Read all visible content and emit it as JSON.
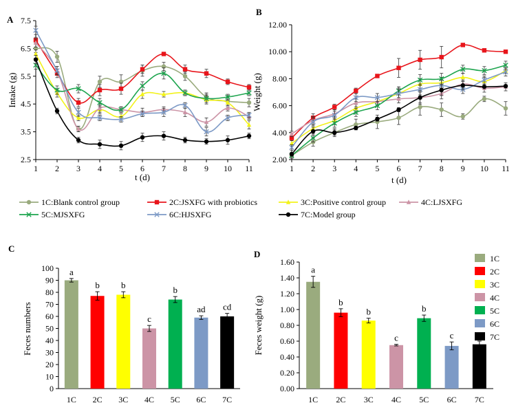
{
  "chart_data": [
    {
      "id": "A",
      "panel_label": "A",
      "type": "line",
      "xlabel": "t (d)",
      "ylabel": "Intake (g)",
      "x": [
        1,
        2,
        3,
        4,
        5,
        6,
        7,
        8,
        9,
        10,
        11
      ],
      "xticks": [
        "1",
        "2",
        "3",
        "4",
        "5",
        "6",
        "7",
        "8",
        "9",
        "10",
        "11"
      ],
      "ylim": [
        2.5,
        7.5
      ],
      "yticks": [
        "2.5",
        "3.5",
        "4.5",
        "5.5",
        "6.5",
        "7.5"
      ],
      "series": [
        {
          "key": "1C",
          "values": [
            6.5,
            6.2,
            3.6,
            5.3,
            5.3,
            5.7,
            5.85,
            5.5,
            4.75,
            4.6,
            4.55
          ],
          "err": [
            0.15,
            0.2,
            0.1,
            0.2,
            0.25,
            0.2,
            0.15,
            0.15,
            0.15,
            0.2,
            0.15
          ]
        },
        {
          "key": "2C",
          "values": [
            6.8,
            5.6,
            4.55,
            5.0,
            5.05,
            5.75,
            6.3,
            5.75,
            5.6,
            5.3,
            5.1
          ],
          "err": [
            0.1,
            0.15,
            0.15,
            0.2,
            0.2,
            0.15,
            0.05,
            0.15,
            0.15,
            0.1,
            0.1
          ]
        },
        {
          "key": "3C",
          "values": [
            6.3,
            4.9,
            4.0,
            4.3,
            4.05,
            4.85,
            4.85,
            4.9,
            4.65,
            4.55,
            3.75
          ],
          "err": [
            0.15,
            0.15,
            0.1,
            0.15,
            0.1,
            0.15,
            0.1,
            0.1,
            0.15,
            0.1,
            0.15
          ]
        },
        {
          "key": "4C",
          "values": [
            6.7,
            5.7,
            3.6,
            4.35,
            4.3,
            4.2,
            4.3,
            4.2,
            3.85,
            4.35,
            4.05
          ],
          "err": [
            0.15,
            0.15,
            0.1,
            0.15,
            0.1,
            0.15,
            0.1,
            0.15,
            0.15,
            0.1,
            0.1
          ]
        },
        {
          "key": "5C",
          "values": [
            5.9,
            5.0,
            5.05,
            4.55,
            4.3,
            5.15,
            5.6,
            4.9,
            4.7,
            4.75,
            4.9
          ],
          "err": [
            0.15,
            0.15,
            0.15,
            0.15,
            0.1,
            0.15,
            0.2,
            0.1,
            0.15,
            0.1,
            0.1
          ]
        },
        {
          "key": "6C",
          "values": [
            7.15,
            5.7,
            4.2,
            4.0,
            3.95,
            4.15,
            4.2,
            4.45,
            3.5,
            4.0,
            4.1
          ],
          "err": [
            0.15,
            0.15,
            0.15,
            0.1,
            0.1,
            0.1,
            0.15,
            0.1,
            0.15,
            0.1,
            0.1
          ]
        },
        {
          "key": "7C",
          "values": [
            6.1,
            4.25,
            3.2,
            3.05,
            3.0,
            3.3,
            3.35,
            3.2,
            3.15,
            3.2,
            3.35
          ],
          "err": [
            0.15,
            0.1,
            0.1,
            0.15,
            0.15,
            0.15,
            0.15,
            0.1,
            0.1,
            0.15,
            0.1
          ]
        }
      ]
    },
    {
      "id": "B",
      "panel_label": "B",
      "type": "line",
      "xlabel": "t (d)",
      "ylabel": "Weight (g)",
      "x": [
        1,
        2,
        3,
        4,
        5,
        6,
        7,
        8,
        9,
        10,
        11
      ],
      "xticks": [
        "1",
        "2",
        "3",
        "4",
        "5",
        "6",
        "7",
        "8",
        "9",
        "10",
        "11"
      ],
      "ylim": [
        2,
        12
      ],
      "yticks": [
        "2.00",
        "4.00",
        "6.00",
        "8.00",
        "10.00",
        "12.00"
      ],
      "series": [
        {
          "key": "1C",
          "values": [
            2.3,
            3.3,
            4.0,
            4.6,
            4.8,
            5.1,
            5.9,
            5.7,
            5.2,
            6.5,
            5.8
          ],
          "err": [
            0.2,
            0.3,
            0.3,
            0.4,
            0.5,
            0.5,
            0.6,
            0.5,
            0.2,
            0.2,
            0.5
          ]
        },
        {
          "key": "2C",
          "values": [
            3.6,
            5.1,
            5.9,
            7.1,
            8.2,
            8.8,
            9.4,
            9.6,
            10.5,
            10.1,
            10.0
          ],
          "err": [
            0.2,
            0.3,
            0.2,
            0.2,
            0.1,
            0.7,
            0.7,
            0.8,
            0.1,
            0.1,
            0.1
          ]
        },
        {
          "key": "3C",
          "values": [
            3.2,
            4.3,
            4.9,
            5.8,
            6.3,
            6.9,
            7.6,
            7.7,
            8.1,
            7.8,
            8.6
          ],
          "err": [
            0.2,
            0.3,
            0.3,
            0.3,
            0.3,
            0.4,
            0.4,
            0.4,
            0.3,
            0.3,
            0.2
          ]
        },
        {
          "key": "4C",
          "values": [
            3.9,
            4.9,
            5.4,
            6.2,
            6.3,
            6.5,
            6.6,
            6.9,
            7.6,
            7.3,
            7.4
          ],
          "err": [
            0.2,
            0.3,
            0.3,
            0.3,
            0.3,
            0.3,
            0.4,
            0.4,
            0.3,
            0.3,
            0.3
          ]
        },
        {
          "key": "5C",
          "values": [
            2.3,
            3.6,
            4.7,
            5.5,
            6.0,
            7.1,
            7.9,
            8.0,
            8.7,
            8.6,
            9.0
          ],
          "err": [
            0.2,
            0.3,
            0.3,
            0.3,
            0.3,
            0.3,
            0.4,
            0.4,
            0.3,
            0.3,
            0.3
          ]
        },
        {
          "key": "6C",
          "values": [
            2.9,
            4.8,
            5.3,
            6.6,
            6.6,
            6.9,
            7.2,
            7.5,
            7.2,
            7.9,
            8.5
          ],
          "err": [
            0.2,
            0.3,
            0.3,
            0.3,
            0.3,
            0.3,
            0.4,
            0.4,
            0.3,
            0.3,
            0.3
          ]
        },
        {
          "key": "7C",
          "values": [
            2.4,
            4.1,
            4.0,
            4.35,
            5.0,
            5.7,
            6.6,
            7.15,
            7.5,
            7.4,
            7.45
          ],
          "err": [
            0.15,
            0.3,
            0.2,
            0.1,
            0.15,
            0.15,
            0.5,
            0.4,
            0.3,
            0.1,
            0.1
          ]
        }
      ]
    },
    {
      "id": "C",
      "panel_label": "C",
      "type": "bar",
      "xlabel": "",
      "ylabel": "Feces numbers",
      "categories": [
        "1C",
        "2C",
        "3C",
        "4C",
        "5C",
        "6C",
        "7C"
      ],
      "values": [
        90,
        77,
        78,
        50,
        74,
        59,
        60
      ],
      "err": [
        1.5,
        3.5,
        2.5,
        2.5,
        2.5,
        1.5,
        2.5
      ],
      "sig_labels": [
        "a",
        "b",
        "b",
        "c",
        "b",
        "ad",
        "cd"
      ],
      "ylim": [
        0,
        100
      ],
      "yticks": [
        "0",
        "10",
        "20",
        "30",
        "40",
        "50",
        "60",
        "70",
        "80",
        "90",
        "100"
      ]
    },
    {
      "id": "D",
      "panel_label": "D",
      "type": "bar",
      "xlabel": "",
      "ylabel": "Feces weight (g)",
      "categories": [
        "1C",
        "2C",
        "3C",
        "4C",
        "5C",
        "6C",
        "7C"
      ],
      "values": [
        1.35,
        0.96,
        0.86,
        0.55,
        0.89,
        0.54,
        0.56
      ],
      "err": [
        0.07,
        0.05,
        0.03,
        0.01,
        0.04,
        0.05,
        0.04
      ],
      "sig_labels": [
        "a",
        "b",
        "b",
        "c",
        "b",
        "c",
        "c"
      ],
      "ylim": [
        0,
        1.6
      ],
      "yticks": [
        "0.00",
        "0.20",
        "0.40",
        "0.60",
        "0.80",
        "1.00",
        "1.20",
        "1.40",
        "1.60"
      ]
    }
  ],
  "legend": {
    "line_items": [
      {
        "key": "1C",
        "label": "1C:Blank control group",
        "marker": "circle"
      },
      {
        "key": "2C",
        "label": "2C:JSXFG with probiotics",
        "marker": "square"
      },
      {
        "key": "3C",
        "label": "3C:Positive control group",
        "marker": "triangle"
      },
      {
        "key": "4C",
        "label": "4C:LJSXFG",
        "marker": "triangle"
      },
      {
        "key": "5C",
        "label": "5C:MJSXFG",
        "marker": "x"
      },
      {
        "key": "6C",
        "label": "6C:HJSXFG",
        "marker": "x"
      },
      {
        "key": "7C",
        "label": "7C:Model group",
        "marker": "circle"
      }
    ],
    "bar_items": [
      {
        "key": "1C",
        "label": "1C"
      },
      {
        "key": "2C",
        "label": "2C"
      },
      {
        "key": "3C",
        "label": "3C"
      },
      {
        "key": "4C",
        "label": "4C"
      },
      {
        "key": "5C",
        "label": "5C"
      },
      {
        "key": "6C",
        "label": "6C"
      },
      {
        "key": "7C",
        "label": "7C"
      }
    ]
  },
  "colors": {
    "line": {
      "1C": "#9aab7e",
      "2C": "#e8151b",
      "3C": "#f2f21a",
      "4C": "#cc94a6",
      "5C": "#1da44e",
      "6C": "#7d9ac6",
      "7C": "#000000"
    },
    "bar": {
      "1C": "#9aab7e",
      "2C": "#ff0000",
      "3C": "#ffff00",
      "4C": "#cc94a6",
      "5C": "#00b050",
      "6C": "#7d9ac6",
      "7C": "#000000"
    }
  }
}
